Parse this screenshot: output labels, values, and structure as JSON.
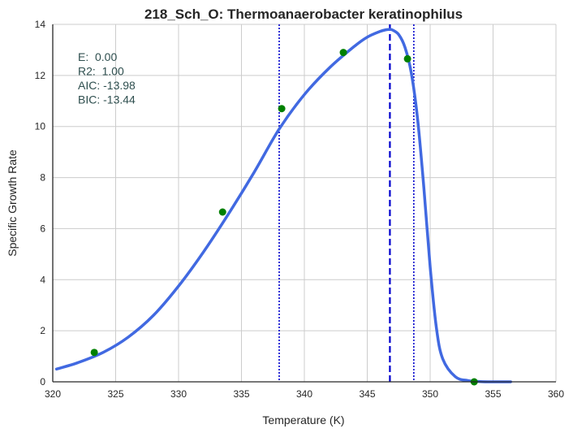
{
  "chart_data": {
    "type": "line",
    "title": "218_Sch_O: Thermoanaerobacter keratinophilus",
    "xlabel": "Temperature (K)",
    "ylabel": "Specific Growth Rate",
    "xlim": [
      320,
      360
    ],
    "ylim": [
      0,
      14
    ],
    "xticks": [
      320,
      325,
      330,
      335,
      340,
      345,
      350,
      355,
      360
    ],
    "yticks": [
      0,
      2,
      4,
      6,
      8,
      10,
      12,
      14
    ],
    "grid": true,
    "stats": [
      "E:  0.00",
      "R2:  1.00",
      "AIC: -13.98",
      "BIC: -13.44"
    ],
    "fit_curve": {
      "x": [
        320.3,
        322,
        324,
        326,
        328,
        330,
        332,
        334,
        336,
        338,
        340,
        342,
        344,
        345,
        346,
        346.5,
        346.8,
        347,
        347.5,
        348,
        348.5,
        349,
        349.5,
        350,
        350.5,
        351,
        352,
        353,
        354,
        355,
        356.4
      ],
      "y": [
        0.5,
        0.75,
        1.15,
        1.75,
        2.6,
        3.75,
        5.1,
        6.6,
        8.2,
        9.9,
        11.25,
        12.3,
        13.15,
        13.5,
        13.72,
        13.79,
        13.8,
        13.78,
        13.6,
        13.1,
        12.1,
        10.3,
        7.6,
        4.5,
        2.1,
        0.9,
        0.2,
        0.05,
        0.01,
        0.0,
        0.0
      ]
    },
    "observations": {
      "x": [
        323.3,
        333.5,
        338.2,
        343.1,
        348.2,
        353.5
      ],
      "y": [
        1.15,
        6.65,
        10.7,
        12.9,
        12.65,
        0.0
      ]
    },
    "vlines": [
      {
        "x": 338.0,
        "style": "dotted"
      },
      {
        "x": 346.8,
        "style": "dashed"
      },
      {
        "x": 348.7,
        "style": "dotted"
      }
    ],
    "colors": {
      "curve": "#4169e1",
      "points": "#008000",
      "vlines": "#0000cd",
      "stats_text": "#2f4f4f",
      "grid": "#cccccc",
      "axis": "#262626"
    }
  }
}
